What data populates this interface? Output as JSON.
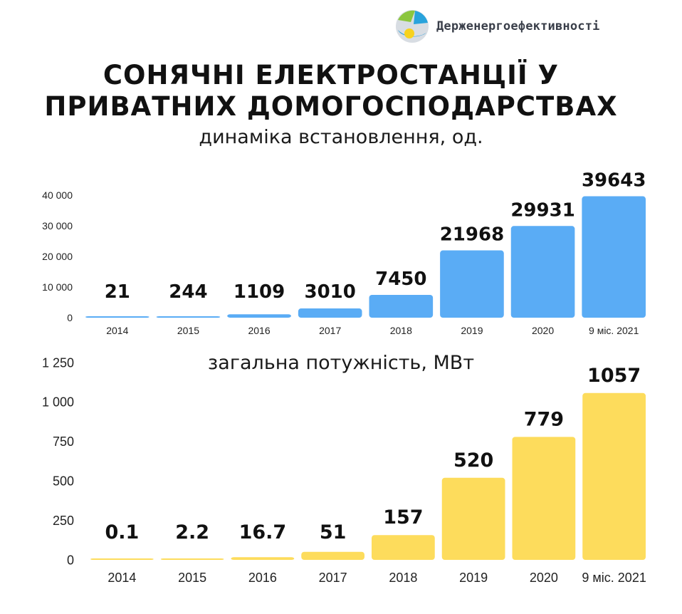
{
  "header": {
    "brand": "Держенергоефективності",
    "logo_icon": "energy-efficiency-logo-icon",
    "title_line1": "СОНЯЧНІ ЕЛЕКТРОСТАНЦІЇ У",
    "title_line2": "ПРИВАТНИХ ДОМОГОСПОДАРСТВАХ"
  },
  "chart_data": [
    {
      "type": "bar",
      "subtitle": "динаміка встановлення, од.",
      "categories": [
        "2014",
        "2015",
        "2016",
        "2017",
        "2018",
        "2019",
        "2020",
        "9 міс. 2021"
      ],
      "values": [
        21,
        244,
        1109,
        3010,
        7450,
        21968,
        29931,
        39643
      ],
      "value_labels": [
        "21",
        "244",
        "1109",
        "3010",
        "7450",
        "21968",
        "29931",
        "39643"
      ],
      "yticks": [
        0,
        10000,
        20000,
        30000,
        40000
      ],
      "ytick_labels": [
        "0",
        "10 000",
        "20 000",
        "30 000",
        "40 000"
      ],
      "ylim": [
        0,
        40000
      ],
      "color": "#5aacf5",
      "grid": false
    },
    {
      "type": "bar",
      "subtitle": "загальна потужність, МВт",
      "categories": [
        "2014",
        "2015",
        "2016",
        "2017",
        "2018",
        "2019",
        "2020",
        "9 міс. 2021"
      ],
      "values": [
        0.1,
        2.2,
        16.7,
        51,
        157,
        520,
        779,
        1057
      ],
      "value_labels": [
        "0.1",
        "2.2",
        "16.7",
        "51",
        "157",
        "520",
        "779",
        "1057"
      ],
      "yticks": [
        0,
        250,
        500,
        750,
        1000,
        1250
      ],
      "ytick_labels": [
        "0",
        "250",
        "500",
        "750",
        "1 000",
        "1 250"
      ],
      "ylim": [
        0,
        1250
      ],
      "color": "#fddc5c",
      "grid": false
    }
  ]
}
